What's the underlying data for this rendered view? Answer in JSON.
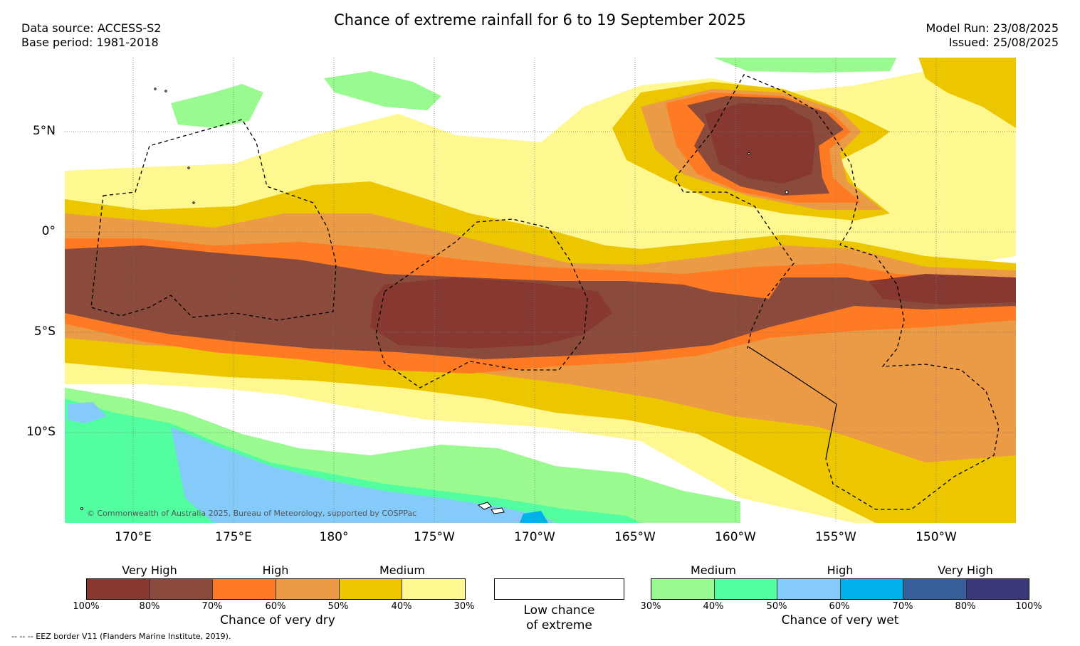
{
  "header": {
    "title": "Chance of extreme rainfall for 6 to 19 September 2025",
    "data_source": "Data source: ACCESS-S2",
    "base_period": "Base period: 1981-2018",
    "model_run": "Model Run: 23/08/2025",
    "issued": "Issued: 25/08/2025"
  },
  "map": {
    "lat_labels": [
      "5°N",
      "0°",
      "5°S",
      "10°S"
    ],
    "lon_labels": [
      "170°E",
      "175°E",
      "180°",
      "175°W",
      "170°W",
      "165°W",
      "160°W",
      "155°W",
      "150°W"
    ],
    "copyright": "© Commonwealth of Australia 2025, Bureau of Meteorology, supported by COSPPac"
  },
  "legend": {
    "dry": {
      "group_labels": [
        "Very High",
        "High",
        "Medium"
      ],
      "colors": [
        "#873830",
        "#8a4a3c",
        "#ff7b23",
        "#eb9a45",
        "#ecc600",
        "#fff790"
      ],
      "ticks": [
        "100%",
        "80%",
        "70%",
        "60%",
        "50%",
        "40%",
        "30%"
      ],
      "title": "Chance of very dry"
    },
    "low": {
      "color": "#ffffff",
      "title_line1": "Low chance",
      "title_line2": "of extreme"
    },
    "wet": {
      "group_labels": [
        "Medium",
        "High",
        "Very High"
      ],
      "colors": [
        "#98fa8f",
        "#52fea0",
        "#84cbfa",
        "#00b2ec",
        "#365f9a",
        "#3a3878"
      ],
      "ticks": [
        "30%",
        "40%",
        "50%",
        "60%",
        "70%",
        "80%",
        "100%"
      ],
      "title": "Chance of very wet"
    }
  },
  "footnote": "--  --  -- EEZ border V11 (Flanders Marine Institute, 2019)."
}
